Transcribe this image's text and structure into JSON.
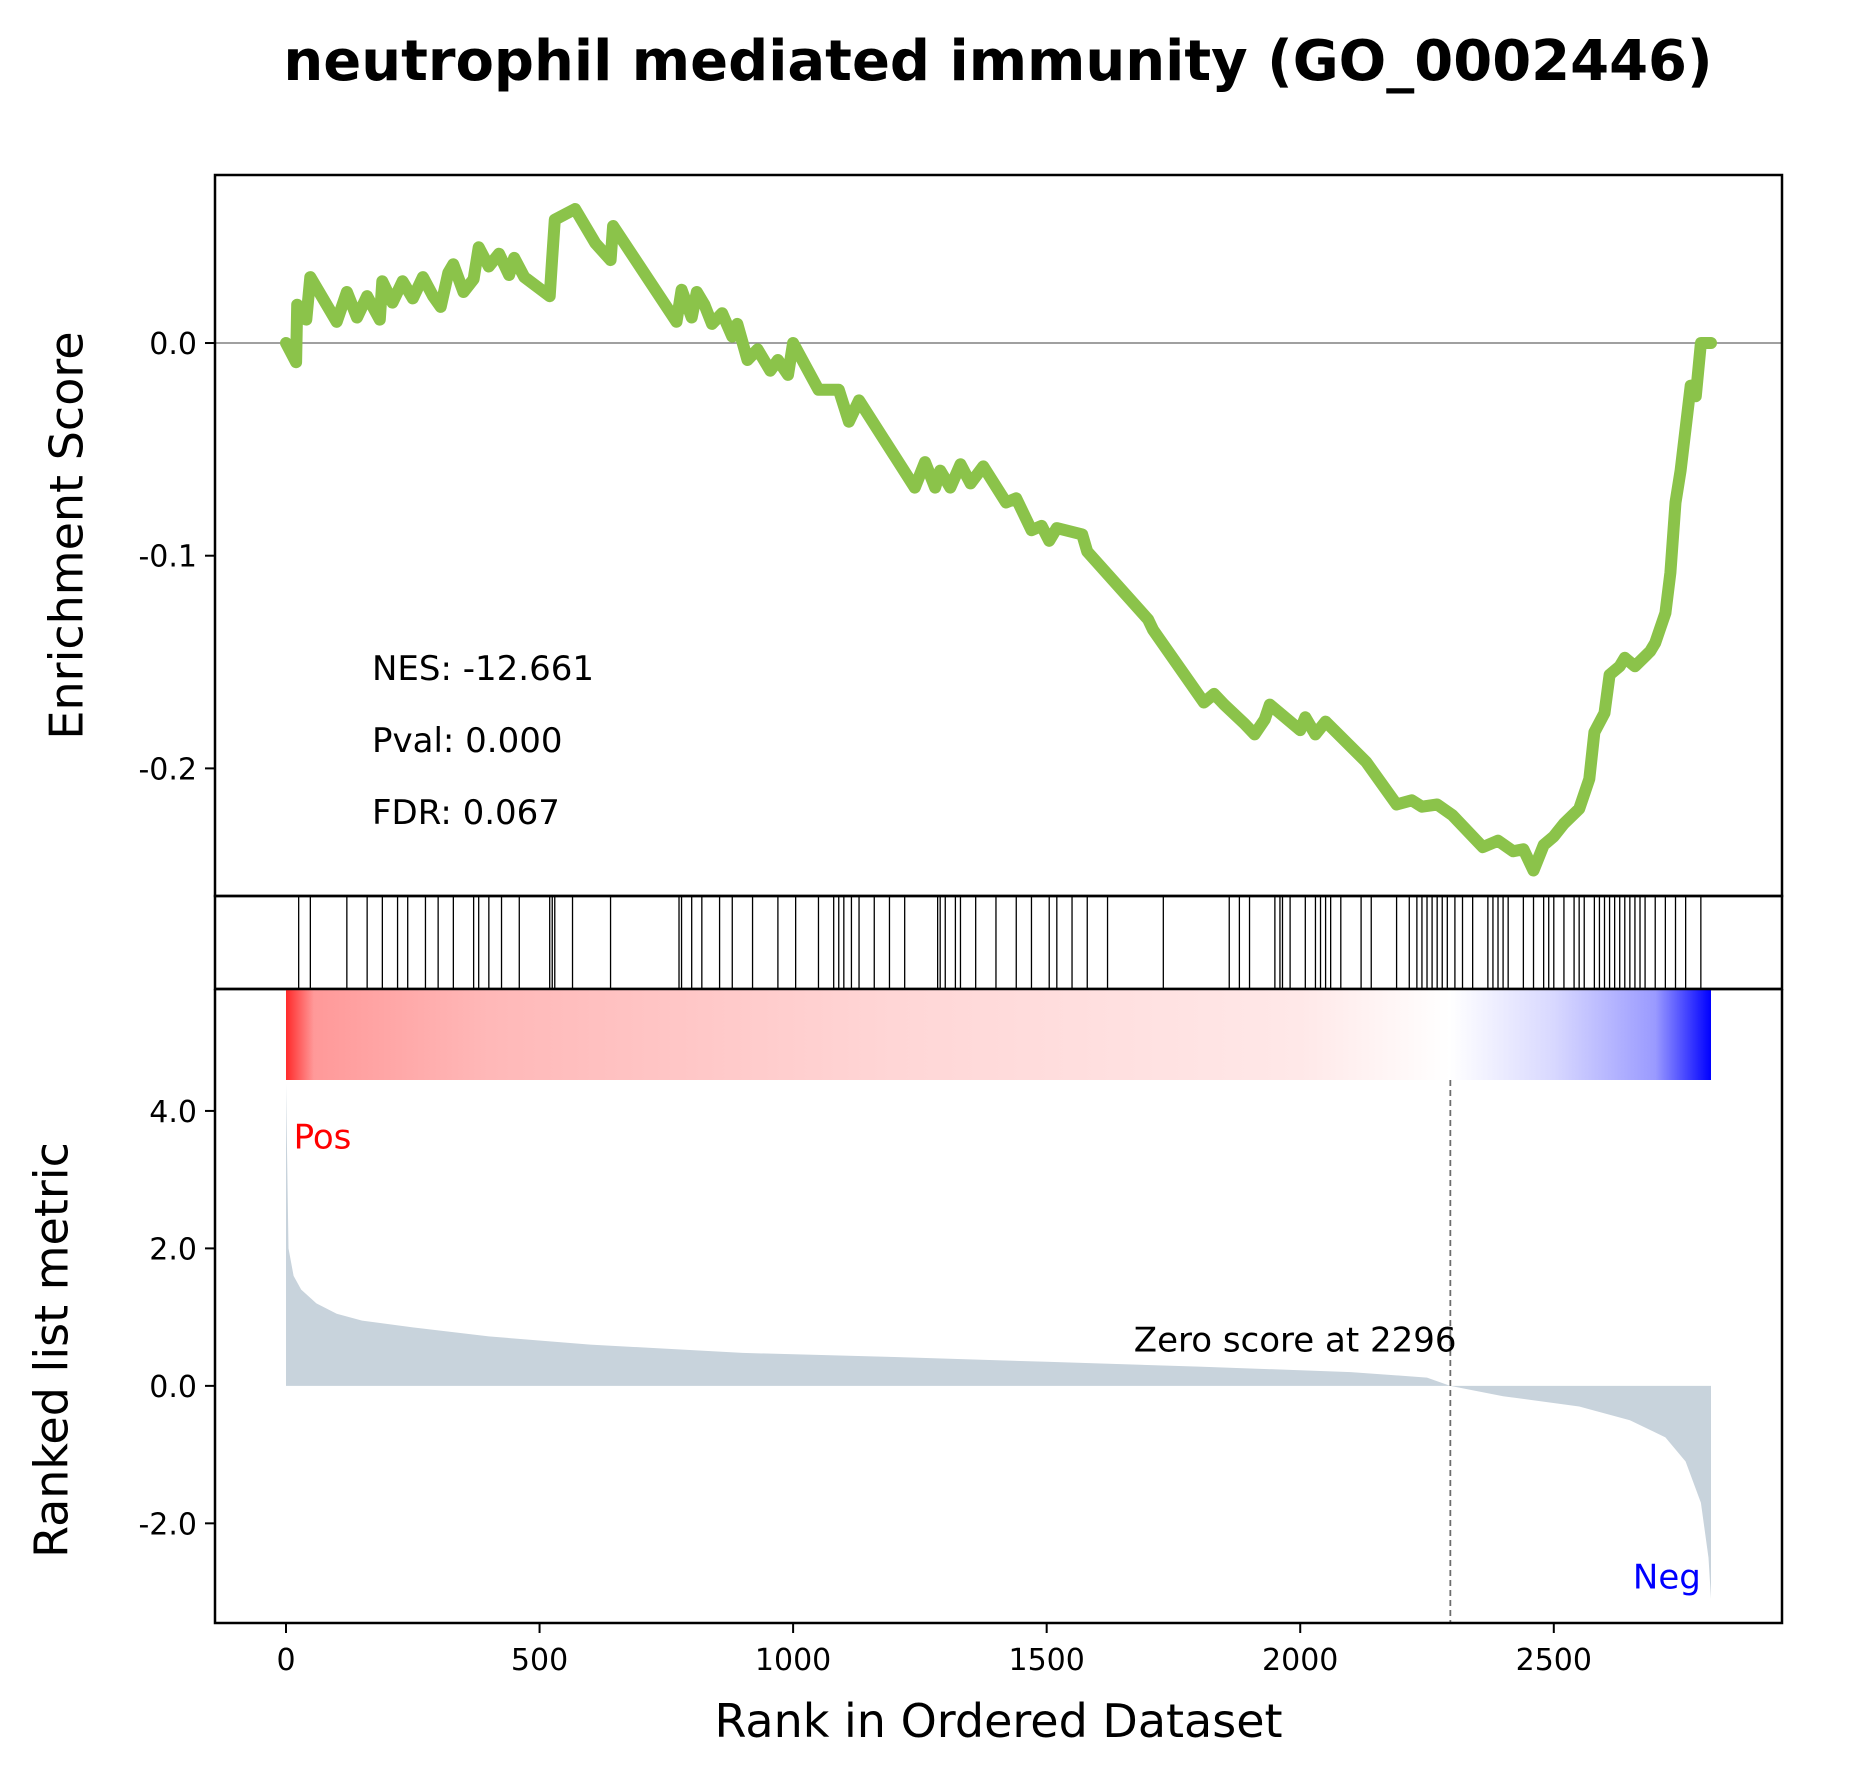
{
  "chart_data": {
    "type": "line",
    "title": "neutrophil mediated immunity (GO_0002446)",
    "n_genes": 2810,
    "xlim": [
      -140,
      2950
    ],
    "x_ticks": [
      0,
      500,
      1000,
      1500,
      2000,
      2500
    ],
    "x_tick_labels": [
      "0",
      "500",
      "1000",
      "1500",
      "2000",
      "2500"
    ],
    "xlabel": "Rank in Ordered Dataset",
    "enrichment_panel": {
      "ylabel": "Enrichment Score",
      "ylim": [
        -0.26,
        0.079
      ],
      "y_ticks": [
        0.0,
        -0.1,
        -0.2
      ],
      "y_tick_labels": [
        "0.0",
        "-0.1",
        "-0.2"
      ],
      "line_color": "#8bc34a",
      "baseline": 0.0,
      "points": [
        [
          0,
          0.0
        ],
        [
          20,
          -0.009
        ],
        [
          22,
          0.018
        ],
        [
          40,
          0.011
        ],
        [
          48,
          0.031
        ],
        [
          100,
          0.01
        ],
        [
          120,
          0.024
        ],
        [
          140,
          0.012
        ],
        [
          160,
          0.022
        ],
        [
          185,
          0.011
        ],
        [
          190,
          0.029
        ],
        [
          210,
          0.019
        ],
        [
          230,
          0.029
        ],
        [
          250,
          0.021
        ],
        [
          270,
          0.031
        ],
        [
          290,
          0.022
        ],
        [
          305,
          0.017
        ],
        [
          320,
          0.033
        ],
        [
          330,
          0.037
        ],
        [
          350,
          0.024
        ],
        [
          370,
          0.03
        ],
        [
          380,
          0.045
        ],
        [
          400,
          0.036
        ],
        [
          420,
          0.042
        ],
        [
          440,
          0.032
        ],
        [
          450,
          0.04
        ],
        [
          470,
          0.031
        ],
        [
          520,
          0.022
        ],
        [
          525,
          0.04
        ],
        [
          530,
          0.058
        ],
        [
          570,
          0.063
        ],
        [
          610,
          0.047
        ],
        [
          640,
          0.039
        ],
        [
          645,
          0.055
        ],
        [
          770,
          0.01
        ],
        [
          780,
          0.025
        ],
        [
          800,
          0.012
        ],
        [
          810,
          0.024
        ],
        [
          825,
          0.018
        ],
        [
          840,
          0.009
        ],
        [
          860,
          0.014
        ],
        [
          880,
          0.003
        ],
        [
          890,
          0.009
        ],
        [
          910,
          -0.008
        ],
        [
          930,
          -0.003
        ],
        [
          955,
          -0.013
        ],
        [
          970,
          -0.008
        ],
        [
          990,
          -0.015
        ],
        [
          1000,
          0.0
        ],
        [
          1050,
          -0.022
        ],
        [
          1090,
          -0.022
        ],
        [
          1110,
          -0.037
        ],
        [
          1130,
          -0.027
        ],
        [
          1240,
          -0.068
        ],
        [
          1260,
          -0.056
        ],
        [
          1280,
          -0.068
        ],
        [
          1290,
          -0.06
        ],
        [
          1310,
          -0.068
        ],
        [
          1330,
          -0.057
        ],
        [
          1350,
          -0.066
        ],
        [
          1375,
          -0.058
        ],
        [
          1420,
          -0.075
        ],
        [
          1440,
          -0.073
        ],
        [
          1470,
          -0.088
        ],
        [
          1490,
          -0.086
        ],
        [
          1505,
          -0.093
        ],
        [
          1520,
          -0.087
        ],
        [
          1570,
          -0.09
        ],
        [
          1580,
          -0.098
        ],
        [
          1700,
          -0.13
        ],
        [
          1710,
          -0.135
        ],
        [
          1810,
          -0.169
        ],
        [
          1830,
          -0.165
        ],
        [
          1850,
          -0.17
        ],
        [
          1890,
          -0.179
        ],
        [
          1910,
          -0.184
        ],
        [
          1930,
          -0.177
        ],
        [
          1940,
          -0.17
        ],
        [
          2000,
          -0.182
        ],
        [
          2010,
          -0.176
        ],
        [
          2030,
          -0.184
        ],
        [
          2050,
          -0.178
        ],
        [
          2130,
          -0.197
        ],
        [
          2190,
          -0.217
        ],
        [
          2220,
          -0.215
        ],
        [
          2240,
          -0.218
        ],
        [
          2270,
          -0.217
        ],
        [
          2300,
          -0.222
        ],
        [
          2360,
          -0.237
        ],
        [
          2390,
          -0.234
        ],
        [
          2420,
          -0.239
        ],
        [
          2440,
          -0.238
        ],
        [
          2460,
          -0.248
        ],
        [
          2480,
          -0.236
        ],
        [
          2500,
          -0.232
        ],
        [
          2520,
          -0.226
        ],
        [
          2550,
          -0.219
        ],
        [
          2570,
          -0.205
        ],
        [
          2580,
          -0.183
        ],
        [
          2600,
          -0.174
        ],
        [
          2610,
          -0.156
        ],
        [
          2630,
          -0.152
        ],
        [
          2640,
          -0.148
        ],
        [
          2660,
          -0.152
        ],
        [
          2690,
          -0.145
        ],
        [
          2700,
          -0.141
        ],
        [
          2720,
          -0.127
        ],
        [
          2730,
          -0.108
        ],
        [
          2740,
          -0.075
        ],
        [
          2750,
          -0.06
        ],
        [
          2770,
          -0.02
        ],
        [
          2780,
          -0.025
        ],
        [
          2790,
          0.0
        ],
        [
          2810,
          0.0
        ]
      ],
      "stats": [
        "NES: -12.661",
        "Pval: 0.000",
        "FDR: 0.067"
      ]
    },
    "hit_ranks": [
      25,
      48,
      120,
      160,
      190,
      220,
      240,
      275,
      300,
      330,
      370,
      380,
      400,
      425,
      460,
      520,
      525,
      530,
      565,
      640,
      775,
      780,
      800,
      820,
      855,
      880,
      920,
      970,
      1005,
      1050,
      1080,
      1090,
      1100,
      1115,
      1130,
      1160,
      1190,
      1220,
      1285,
      1290,
      1300,
      1320,
      1330,
      1360,
      1400,
      1440,
      1470,
      1505,
      1520,
      1550,
      1580,
      1620,
      1730,
      1860,
      1880,
      1900,
      1950,
      1960,
      1965,
      1980,
      2010,
      2030,
      2040,
      2050,
      2060,
      2080,
      2120,
      2140,
      2190,
      2215,
      2230,
      2240,
      2250,
      2260,
      2270,
      2280,
      2290,
      2305,
      2320,
      2340,
      2370,
      2380,
      2390,
      2400,
      2410,
      2440,
      2460,
      2480,
      2490,
      2500,
      2520,
      2540,
      2550,
      2560,
      2580,
      2590,
      2600,
      2610,
      2620,
      2630,
      2640,
      2650,
      2660,
      2670,
      2680,
      2700,
      2720,
      2740,
      2760,
      2790
    ],
    "color_bar": {
      "zero_rank": 2296,
      "stops": [
        {
          "rank": 0,
          "color": "#ff2a2a"
        },
        {
          "rank": 55,
          "color": "#ff9999"
        },
        {
          "rank": 400,
          "color": "#ffb8b8"
        },
        {
          "rank": 1200,
          "color": "#ffd6d6"
        },
        {
          "rank": 2000,
          "color": "#ffe8e8"
        },
        {
          "rank": 2296,
          "color": "#ffffff"
        },
        {
          "rank": 2500,
          "color": "#d8d8ff"
        },
        {
          "rank": 2700,
          "color": "#9a9aff"
        },
        {
          "rank": 2810,
          "color": "#0000ff"
        }
      ]
    },
    "metric_panel": {
      "ylabel": "Ranked list metric",
      "ylim": [
        -3.45,
        4.45
      ],
      "y_ticks": [
        4.0,
        2.0,
        0.0,
        -2.0
      ],
      "y_tick_labels": [
        "4.0",
        "2.0",
        "0.0",
        "-2.0"
      ],
      "fill_color": "#c8d3dc",
      "points": [
        [
          0,
          4.4
        ],
        [
          5,
          2.0
        ],
        [
          15,
          1.6
        ],
        [
          30,
          1.4
        ],
        [
          60,
          1.2
        ],
        [
          100,
          1.05
        ],
        [
          150,
          0.95
        ],
        [
          250,
          0.85
        ],
        [
          400,
          0.72
        ],
        [
          600,
          0.6
        ],
        [
          900,
          0.48
        ],
        [
          1200,
          0.42
        ],
        [
          1500,
          0.35
        ],
        [
          1800,
          0.28
        ],
        [
          2100,
          0.2
        ],
        [
          2250,
          0.12
        ],
        [
          2296,
          0.0
        ],
        [
          2400,
          -0.15
        ],
        [
          2550,
          -0.3
        ],
        [
          2650,
          -0.5
        ],
        [
          2720,
          -0.75
        ],
        [
          2760,
          -1.1
        ],
        [
          2790,
          -1.7
        ],
        [
          2805,
          -2.5
        ],
        [
          2810,
          -3.1
        ]
      ],
      "zero_label": "Zero score at 2296",
      "pos_label": "Pos",
      "neg_label": "Neg",
      "pos_color": "#ff0000",
      "neg_color": "#0000ff"
    }
  }
}
